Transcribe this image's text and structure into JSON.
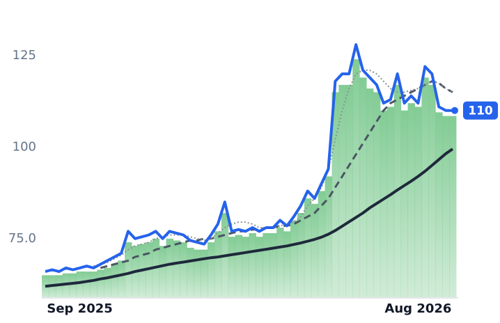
{
  "chart_data": {
    "type": "line",
    "categories": [
      null,
      null,
      null,
      null,
      null,
      "Sep 2025",
      null,
      null,
      null,
      null,
      null,
      null,
      null,
      null,
      null,
      null,
      null,
      null,
      null,
      null,
      null,
      null,
      null,
      null,
      null,
      null,
      null,
      null,
      null,
      null,
      null,
      null,
      null,
      null,
      null,
      null,
      null,
      null,
      null,
      null,
      null,
      null,
      null,
      null,
      null,
      null,
      null,
      null,
      null,
      null,
      null,
      null,
      null,
      null,
      "Aug 2026",
      null,
      null,
      null,
      null,
      null
    ],
    "series": [
      {
        "color": "#2563eb",
        "style": "solid",
        "width": 4,
        "values": [
          66,
          66.5,
          66,
          67,
          66.5,
          67,
          67.5,
          67,
          68,
          69,
          70,
          71,
          77,
          75,
          75.5,
          76,
          77,
          75,
          77,
          76.5,
          76,
          74.5,
          74,
          73.5,
          76,
          79,
          85,
          77,
          77.5,
          77,
          78,
          77,
          78,
          78,
          80,
          78.5,
          81,
          84,
          88,
          86,
          90,
          94,
          118,
          120,
          120,
          128,
          121,
          119,
          117,
          112,
          113,
          120,
          112,
          114,
          112,
          122,
          120,
          111,
          110,
          110
        ],
        "value_labels": [
          null,
          null,
          null,
          null,
          null,
          null,
          null,
          null,
          null,
          null,
          null,
          null,
          null,
          null,
          null,
          null,
          null,
          null,
          null,
          null,
          null,
          null,
          null,
          null,
          null,
          null,
          null,
          null,
          null,
          null,
          null,
          null,
          null,
          null,
          null,
          null,
          null,
          null,
          null,
          null,
          null,
          null,
          null,
          null,
          null,
          null,
          null,
          null,
          null,
          null,
          null,
          null,
          null,
          null,
          null,
          null,
          null,
          null,
          null,
          "110"
        ]
      },
      {
        "color": "#8a8f99",
        "style": "dotted",
        "width": 2,
        "values": [
          null,
          null,
          null,
          null,
          null,
          null,
          null,
          67.5,
          68,
          68.5,
          69.5,
          70.5,
          72,
          73,
          73.5,
          74,
          75,
          75.5,
          76,
          76,
          76,
          75.5,
          75,
          74.5,
          75,
          76.5,
          78,
          79,
          79.5,
          79.5,
          79,
          78,
          78,
          78,
          78.5,
          79,
          79.5,
          81,
          84,
          86,
          89,
          94,
          102,
          110,
          116,
          120,
          121,
          121,
          120,
          118,
          116,
          115,
          115,
          115.5,
          116,
          117,
          118,
          117.5,
          116,
          115
        ]
      },
      {
        "color": "#4b5563",
        "style": "dashed",
        "width": 3,
        "values": [
          null,
          null,
          null,
          null,
          null,
          null,
          null,
          null,
          67,
          67.5,
          68,
          68.5,
          69,
          70,
          70.5,
          71,
          72,
          72.5,
          73,
          73.5,
          74,
          74.5,
          74.5,
          75,
          75,
          75.5,
          76,
          76.5,
          77,
          77,
          77.5,
          77.5,
          78,
          78,
          78.5,
          78.5,
          79,
          80,
          81,
          82,
          84,
          86,
          89,
          92,
          95,
          98,
          101,
          104,
          107,
          110,
          112,
          113,
          114,
          115,
          116,
          117,
          118,
          117.5,
          116,
          115
        ]
      },
      {
        "color": "#1e293b",
        "style": "solid",
        "width": 4,
        "values": [
          62,
          62.2,
          62.4,
          62.6,
          62.8,
          63,
          63.3,
          63.6,
          64,
          64.3,
          64.7,
          65.1,
          65.5,
          66,
          66.4,
          66.8,
          67.2,
          67.6,
          68,
          68.3,
          68.6,
          68.9,
          69.2,
          69.5,
          69.8,
          70,
          70.3,
          70.6,
          70.9,
          71.2,
          71.5,
          71.8,
          72.1,
          72.4,
          72.7,
          73,
          73.4,
          73.8,
          74.3,
          74.8,
          75.4,
          76.2,
          77.2,
          78.4,
          79.6,
          80.8,
          82,
          83.4,
          84.6,
          85.8,
          87,
          88.3,
          89.5,
          90.7,
          92,
          93.4,
          95,
          96.6,
          98.2,
          99.5
        ]
      }
    ],
    "bars": {
      "color": "#7cc98f",
      "values": [
        65,
        65,
        65,
        65.5,
        65.5,
        66,
        66,
        66,
        66.5,
        67,
        68,
        69,
        74,
        73,
        73.5,
        74,
        75,
        73,
        75,
        74.5,
        74,
        72.5,
        72,
        72,
        74,
        77,
        82,
        75.5,
        76,
        75.5,
        76.5,
        75.5,
        76.5,
        76.5,
        78,
        77,
        80,
        82,
        86,
        84.5,
        88,
        92,
        115,
        117,
        117,
        124,
        119,
        116,
        115,
        110,
        111,
        117,
        110,
        112,
        111,
        119,
        117,
        109.5,
        108.5,
        108.5
      ]
    },
    "ylim": [
      58.8,
      136
    ],
    "yticks": [
      {
        "value": 75,
        "label": "75.0"
      },
      100,
      125
    ],
    "grid": false
  }
}
